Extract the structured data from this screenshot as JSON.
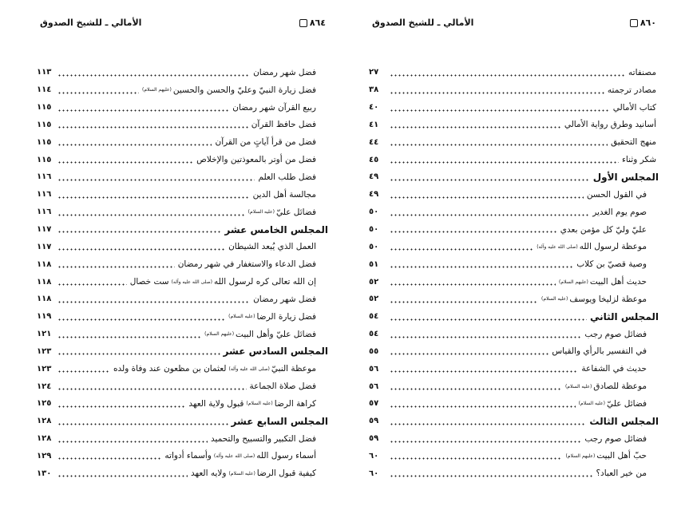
{
  "right_page": {
    "page_number": "٨٦٠",
    "running_title": "الأمالي ـ للشيخ الصدوق",
    "entries": [
      {
        "title": "مصنفاته",
        "hon": "",
        "page": "٢٧",
        "level": "t"
      },
      {
        "title": "مصادر ترجمته",
        "hon": "",
        "page": "٣٨",
        "level": "t"
      },
      {
        "title": "كتاب الأمالي",
        "hon": "",
        "page": "٤٠",
        "level": "t"
      },
      {
        "title": "أسانيد وطرق رواية الأمالي",
        "hon": "",
        "page": "٤١",
        "level": "t"
      },
      {
        "title": "منهج التحقيق",
        "hon": "",
        "page": "٤٤",
        "level": "t"
      },
      {
        "title": "شكر وثناء",
        "hon": "",
        "page": "٤٥",
        "level": "t"
      },
      {
        "title": "المجلس الأول",
        "hon": "",
        "page": "٤٩",
        "level": "h"
      },
      {
        "title": "في القول الحسن",
        "hon": "",
        "page": "٤٩",
        "level": "sub"
      },
      {
        "title": "صوم يوم الغدير",
        "hon": "",
        "page": "٥٠",
        "level": "sub"
      },
      {
        "title": "عليّ وليّ كل مؤمن بعدي",
        "hon": "",
        "page": "٥٠",
        "level": "sub"
      },
      {
        "title": "موعظة لرسول الله",
        "hon": "(صلى الله عليه وآله)",
        "page": "٥٠",
        "level": "sub"
      },
      {
        "title": "وصية قصيّ بن كلاب",
        "hon": "",
        "page": "٥١",
        "level": "sub"
      },
      {
        "title": "حديث أهل البيت",
        "hon": "(عليهم السلام)",
        "page": "٥٢",
        "level": "sub"
      },
      {
        "title": "موعظة لزليخا ويوسف",
        "hon": "(عليه السلام)",
        "page": "٥٢",
        "level": "sub"
      },
      {
        "title": "المجلس الثاني",
        "hon": "",
        "page": "٥٤",
        "level": "h"
      },
      {
        "title": "فضائل صوم رجب",
        "hon": "",
        "page": "٥٤",
        "level": "sub"
      },
      {
        "title": "في التفسير بالرأي والقياس",
        "hon": "",
        "page": "٥٥",
        "level": "sub"
      },
      {
        "title": "حديث في الشفاعة",
        "hon": "",
        "page": "٥٦",
        "level": "sub"
      },
      {
        "title": "موعظة للصادق",
        "hon": "(عليه السلام)",
        "page": "٥٦",
        "level": "sub"
      },
      {
        "title": "فضائل عليّ",
        "hon": "(عليه السلام)",
        "page": "٥٧",
        "level": "sub"
      },
      {
        "title": "المجلس الثالث",
        "hon": "",
        "page": "٥٩",
        "level": "h"
      },
      {
        "title": "فضائل صوم رجب",
        "hon": "",
        "page": "٥٩",
        "level": "sub"
      },
      {
        "title": "حبّ أهل البيت",
        "hon": "(عليهم السلام)",
        "page": "٦٠",
        "level": "sub"
      },
      {
        "title": "من خير العباد؟",
        "hon": "",
        "page": "٦٠",
        "level": "sub"
      }
    ]
  },
  "left_page": {
    "page_number": "٨٦٤",
    "running_title": "الأمالي ـ للشيخ الصدوق",
    "entries": [
      {
        "title": "فضل شهر رمضان",
        "hon": "",
        "page": "١١٣",
        "level": "sub"
      },
      {
        "title": "فضل زيارة النبيّ وعليّ والحسن والحسين",
        "hon": "(عليهم السلام)",
        "page": "١١٤",
        "level": "sub"
      },
      {
        "title": "ربيع القرآن شهر رمضان",
        "hon": "",
        "page": "١١٥",
        "level": "sub"
      },
      {
        "title": "فضل حافظ القرآن",
        "hon": "",
        "page": "١١٥",
        "level": "sub"
      },
      {
        "title": "فضل من قرأ آياتٍ من القرآن",
        "hon": "",
        "page": "١١٥",
        "level": "sub"
      },
      {
        "title": "فضل من أوتر بالمعوذتين والإخلاص",
        "hon": "",
        "page": "١١٥",
        "level": "sub"
      },
      {
        "title": "فضل طلب العلم",
        "hon": "",
        "page": "١١٦",
        "level": "sub"
      },
      {
        "title": "مجالسة أهل الدين",
        "hon": "",
        "page": "١١٦",
        "level": "sub"
      },
      {
        "title": "فضائل عليّ",
        "hon": "(عليه السلام)",
        "page": "١١٦",
        "level": "sub"
      },
      {
        "title": "المجلس الخامس عشر",
        "hon": "",
        "page": "١١٧",
        "level": "h"
      },
      {
        "title": "العمل الذي يُبعد الشيطان",
        "hon": "",
        "page": "١١٧",
        "level": "sub"
      },
      {
        "title": "فضل الدعاء والاستغفار في شهر رمضان",
        "hon": "",
        "page": "١١٨",
        "level": "sub"
      },
      {
        "title": "إن الله تعالى كره لرسول الله",
        "hon": "(صلى الله عليه وآله)",
        "tail": "ست خصال",
        "page": "١١٨",
        "level": "sub"
      },
      {
        "title": "فضل شهر رمضان",
        "hon": "",
        "page": "١١٨",
        "level": "sub"
      },
      {
        "title": "فضل زيارة الرضا",
        "hon": "(عليه السلام)",
        "page": "١١٩",
        "level": "sub"
      },
      {
        "title": "فضائل عليّ وأهل البيت",
        "hon": "(عليهم السلام)",
        "page": "١٢١",
        "level": "sub"
      },
      {
        "title": "المجلس السادس عشر",
        "hon": "",
        "page": "١٢٣",
        "level": "h"
      },
      {
        "title": "موعظة النبيّ",
        "hon": "(صلى الله عليه وآله)",
        "tail": "لعثمان بن مظعون عند وفاة ولده",
        "page": "١٢٣",
        "level": "sub"
      },
      {
        "title": "فضل صلاة الجماعة",
        "hon": "",
        "page": "١٢٤",
        "level": "sub"
      },
      {
        "title": "كراهة الرضا",
        "hon": "(عليه السلام)",
        "tail": "قبول ولاية العهد",
        "page": "١٢٥",
        "level": "sub"
      },
      {
        "title": "المجلس السابع عشر",
        "hon": "",
        "page": "١٢٨",
        "level": "h"
      },
      {
        "title": "فضل التكبير والتسبيح والتحميد",
        "hon": "",
        "page": "١٢٨",
        "level": "sub"
      },
      {
        "title": "أسماء رسول الله",
        "hon": "(صلى الله عليه وآله)",
        "tail": "وأسماء أدواته",
        "page": "١٢٩",
        "level": "sub"
      },
      {
        "title": "كيفية قبول الرضا",
        "hon": "(عليه السلام)",
        "tail": "ولايه العهد",
        "page": "١٣٠",
        "level": "sub"
      }
    ]
  }
}
